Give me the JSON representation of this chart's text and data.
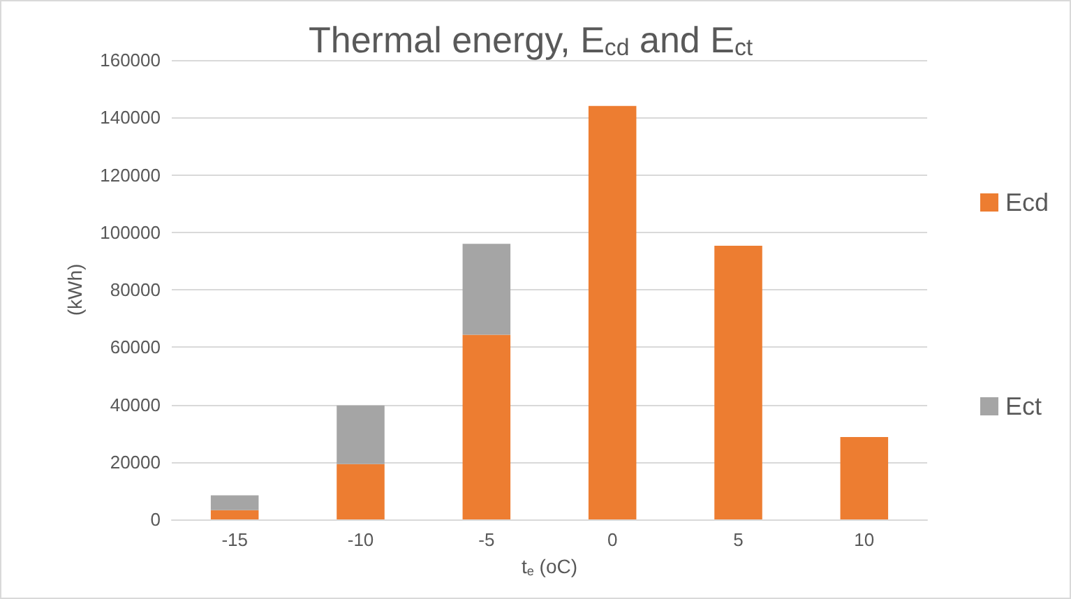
{
  "chart_data": {
    "type": "bar",
    "title": "Thermal energy, E$_{cd}$ and E$_{ct}$",
    "xlabel": "t$_{e}$ (oC)",
    "ylabel": "(kWh)",
    "categories": [
      "-15",
      "-10",
      "-5",
      "0",
      "5",
      "10"
    ],
    "stacked": true,
    "series": [
      {
        "name": "Ecd",
        "color": "#ed7d31",
        "values": [
          3200,
          19300,
          64300,
          144000,
          95300,
          28700
        ]
      },
      {
        "name": "Ect",
        "color": "#a5a5a5",
        "values": [
          5200,
          20400,
          31700,
          null,
          null,
          null
        ]
      }
    ],
    "ylim": [
      0,
      160000
    ],
    "yticks": [
      0,
      20000,
      40000,
      60000,
      80000,
      100000,
      120000,
      140000,
      160000
    ],
    "grid": "y",
    "legend": "right"
  }
}
